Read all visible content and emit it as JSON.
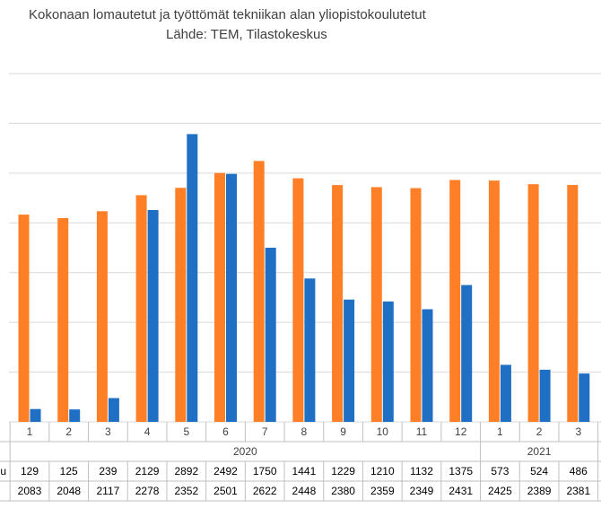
{
  "colors": {
    "series_orange": "#ff7f27",
    "series_blue": "#1f6fc5",
    "grid": "#d9d9d9",
    "table_border": "#bfbfbf"
  },
  "chart_data": {
    "type": "bar",
    "title": "Kokonaan lomautetut ja työttömät tekniikan alan yliopistokoulutetut",
    "subtitle": "Lähde: TEM, Tilastokeskus",
    "categories": [
      "1",
      "2",
      "3",
      "4",
      "5",
      "6",
      "7",
      "8",
      "9",
      "10",
      "11",
      "12",
      "1",
      "2",
      "3"
    ],
    "year_groups": [
      {
        "label": "2020",
        "count": 12
      },
      {
        "label": "2021",
        "count": 3
      }
    ],
    "series": [
      {
        "color": "#1f6fc5",
        "row_label": "u",
        "values": [
          129,
          125,
          239,
          2129,
          2892,
          2492,
          1750,
          1441,
          1229,
          1210,
          1132,
          1375,
          573,
          524,
          486
        ]
      },
      {
        "color": "#ff7f27",
        "row_label": "",
        "values": [
          2083,
          2048,
          2117,
          2278,
          2352,
          2501,
          2622,
          2448,
          2380,
          2359,
          2349,
          2431,
          2425,
          2389,
          2381
        ]
      }
    ],
    "ylim": [
      0,
      3500
    ],
    "grid": true,
    "legend": "none"
  }
}
